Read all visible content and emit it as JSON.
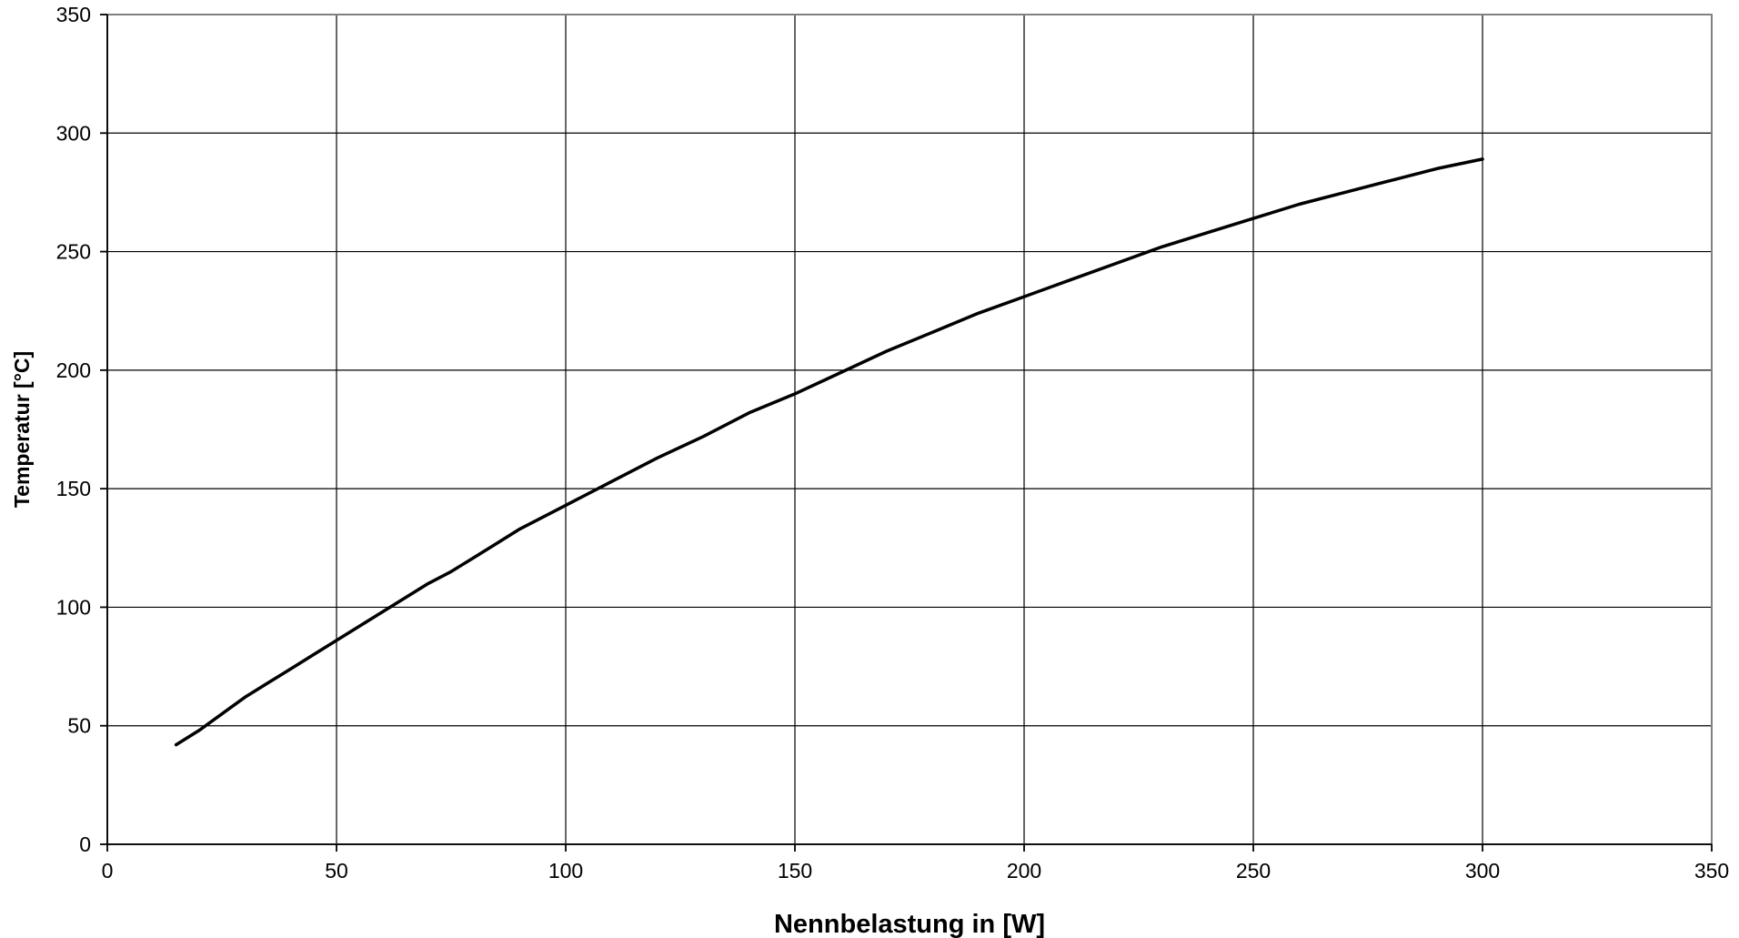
{
  "chart_data": {
    "type": "line",
    "title": "",
    "xlabel": "Nennbelastung in [W]",
    "ylabel": "Temperatur [°C]",
    "xlim": [
      0,
      350
    ],
    "ylim": [
      0,
      350
    ],
    "xticks": [
      0,
      50,
      100,
      150,
      200,
      250,
      300,
      350
    ],
    "yticks": [
      0,
      50,
      100,
      150,
      200,
      250,
      300,
      350
    ],
    "grid": true,
    "legend": "none",
    "line_color": "#000000",
    "series": [
      {
        "x": [
          15,
          20,
          25,
          30,
          35,
          40,
          45,
          50,
          55,
          60,
          65,
          70,
          75,
          80,
          85,
          90,
          95,
          100,
          110,
          120,
          130,
          140,
          150,
          160,
          170,
          180,
          190,
          200,
          210,
          220,
          230,
          240,
          250,
          260,
          270,
          280,
          290,
          300
        ],
        "values": [
          42,
          48,
          55,
          62,
          68,
          74,
          80,
          86,
          92,
          98,
          104,
          110,
          115,
          121,
          127,
          133,
          138,
          143,
          153,
          163,
          172,
          182,
          190,
          199,
          208,
          216,
          224,
          231,
          238,
          245,
          252,
          258,
          264,
          270,
          275,
          280,
          285,
          289
        ]
      }
    ]
  }
}
